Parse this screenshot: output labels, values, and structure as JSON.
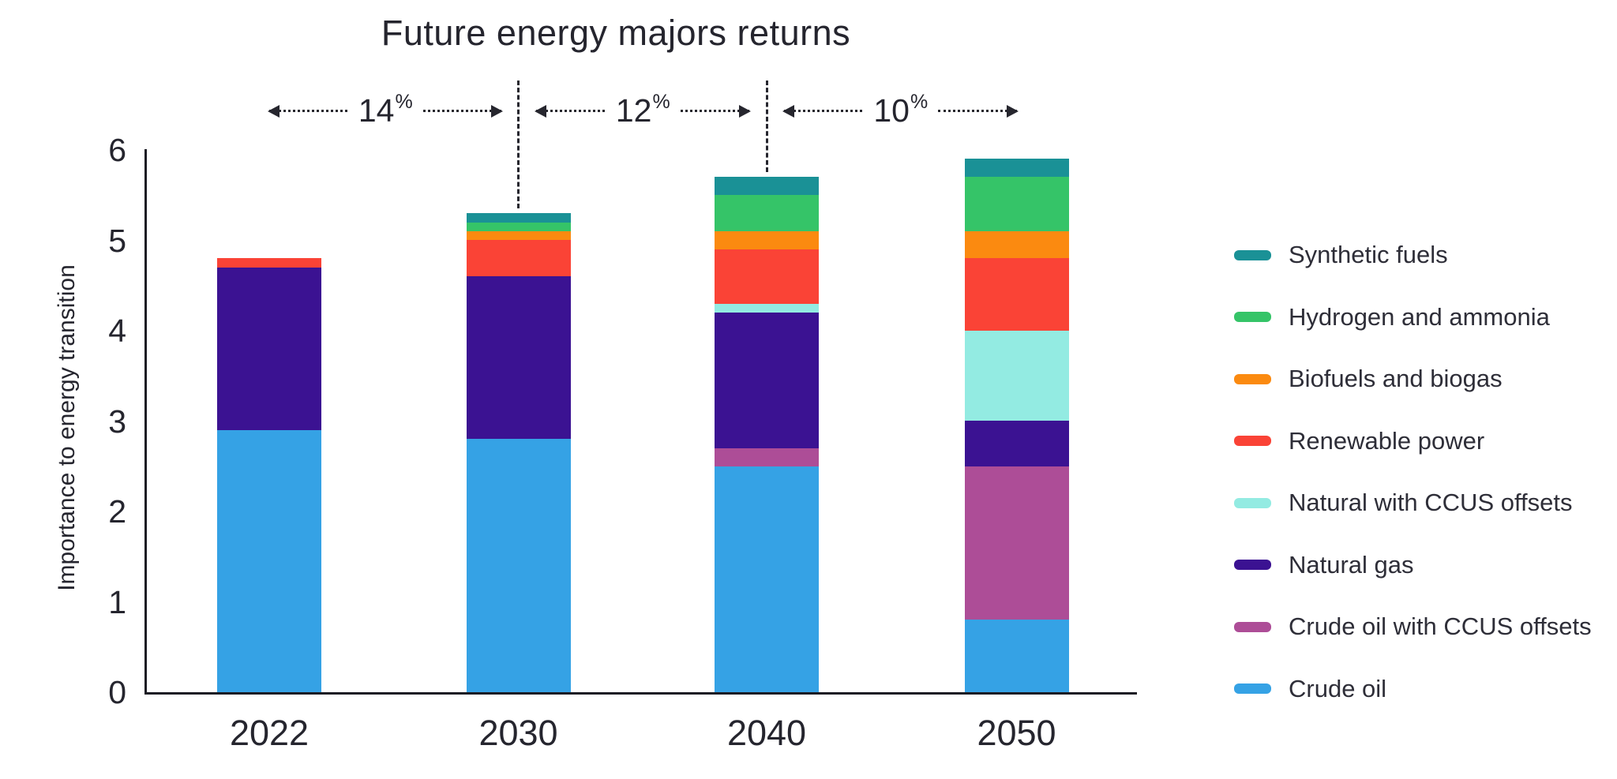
{
  "title": "Future energy majors returns",
  "y_axis": {
    "label": "Importance to energy transition",
    "ticks": [
      "0",
      "1",
      "2",
      "3",
      "4",
      "5",
      "6"
    ]
  },
  "x_axis": {
    "labels": [
      "2022",
      "2030",
      "2040",
      "2050"
    ]
  },
  "annotations": [
    {
      "value": "14",
      "suffix": "%",
      "from": "2022",
      "to": "2030"
    },
    {
      "value": "12",
      "suffix": "%",
      "from": "2030",
      "to": "2040"
    },
    {
      "value": "10",
      "suffix": "%",
      "from": "2040",
      "to": "2050"
    }
  ],
  "legend": [
    {
      "label": "Synthetic fuels",
      "color": "#1a9196"
    },
    {
      "label": "Hydrogen and ammonia",
      "color": "#35c468"
    },
    {
      "label": "Biofuels and biogas",
      "color": "#fb8a10"
    },
    {
      "label": "Renewable power",
      "color": "#fa4336"
    },
    {
      "label": "Natural with CCUS offsets",
      "color": "#93ebe2"
    },
    {
      "label": "Natural gas",
      "color": "#3b1292"
    },
    {
      "label": "Crude oil with CCUS offsets",
      "color": "#ad4d97"
    },
    {
      "label": "Crude oil",
      "color": "#35a2e5"
    }
  ],
  "chart_data": {
    "type": "bar",
    "stacked": true,
    "title": "Future energy majors returns",
    "xlabel": "",
    "ylabel": "Importance to energy transition",
    "ylim": [
      0,
      6
    ],
    "grid": false,
    "legend_position": "right",
    "categories": [
      "2022",
      "2030",
      "2040",
      "2050"
    ],
    "series": [
      {
        "name": "Crude oil",
        "color": "#35a2e5",
        "values": [
          2.9,
          2.8,
          2.5,
          0.8
        ]
      },
      {
        "name": "Crude oil with CCUS offsets",
        "color": "#ad4d97",
        "values": [
          0,
          0,
          0.2,
          1.7
        ]
      },
      {
        "name": "Natural gas",
        "color": "#3b1292",
        "values": [
          1.8,
          1.8,
          1.5,
          0.5
        ]
      },
      {
        "name": "Natural with CCUS offsets",
        "color": "#93ebe2",
        "values": [
          0,
          0,
          0.1,
          1.0
        ]
      },
      {
        "name": "Renewable power",
        "color": "#fa4336",
        "values": [
          0.1,
          0.4,
          0.6,
          0.8
        ]
      },
      {
        "name": "Biofuels and biogas",
        "color": "#fb8a10",
        "values": [
          0,
          0.1,
          0.2,
          0.3
        ]
      },
      {
        "name": "Hydrogen and ammonia",
        "color": "#35c468",
        "values": [
          0,
          0.1,
          0.4,
          0.6
        ]
      },
      {
        "name": "Synthetic fuels",
        "color": "#1a9196",
        "values": [
          0,
          0.1,
          0.2,
          0.2
        ]
      }
    ],
    "totals": [
      4.8,
      5.3,
      5.7,
      5.9
    ],
    "growth_annotations": [
      {
        "between": [
          "2022",
          "2030"
        ],
        "label": "14%"
      },
      {
        "between": [
          "2030",
          "2040"
        ],
        "label": "12%"
      },
      {
        "between": [
          "2040",
          "2050"
        ],
        "label": "10%"
      }
    ]
  }
}
